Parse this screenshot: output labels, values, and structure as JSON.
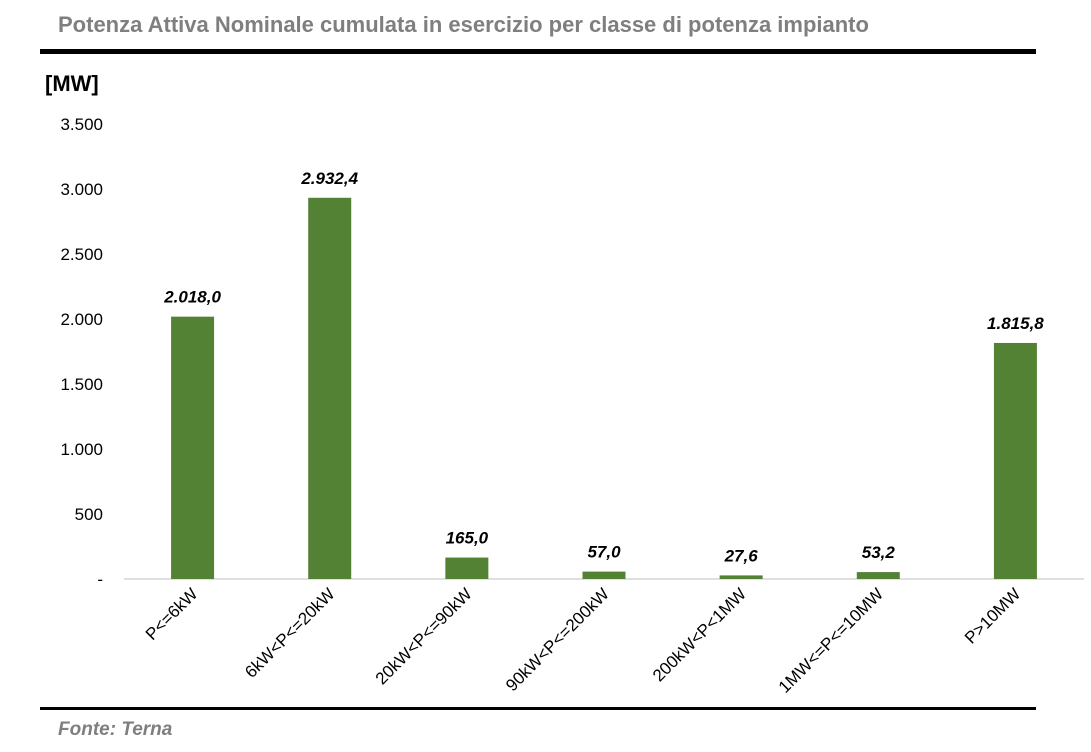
{
  "title": "Potenza Attiva Nominale cumulata in esercizio per classe di potenza impianto",
  "unit_label": "[MW]",
  "source": "Fonte: Terna",
  "colors": {
    "bar": "#548235",
    "axis": "#bfbfbf"
  },
  "chart_data": {
    "type": "bar",
    "title": "Potenza Attiva Nominale cumulata in esercizio per classe di potenza impianto",
    "ylabel": "[MW]",
    "xlabel": "",
    "ylim": [
      0,
      3500
    ],
    "yticks": [
      0,
      500,
      1000,
      1500,
      2000,
      2500,
      3000,
      3500
    ],
    "ytick_labels": [
      "-",
      "500",
      "1.000",
      "1.500",
      "2.000",
      "2.500",
      "3.000",
      "3.500"
    ],
    "categories": [
      "P<=6kW",
      "6kW<P<=20kW",
      "20kW<P<=90kW",
      "90kW<P<=200kW",
      "200kW<P<1MW",
      "1MW<=P<=10MW",
      "P>10MW"
    ],
    "values": [
      2018.0,
      2932.4,
      165.0,
      57.0,
      27.6,
      53.2,
      1815.8
    ],
    "data_labels": [
      "2.018,0",
      "2.932,4",
      "165,0",
      "57,0",
      "27,6",
      "53,2",
      "1.815,8"
    ],
    "grid": false,
    "legend": "none"
  }
}
